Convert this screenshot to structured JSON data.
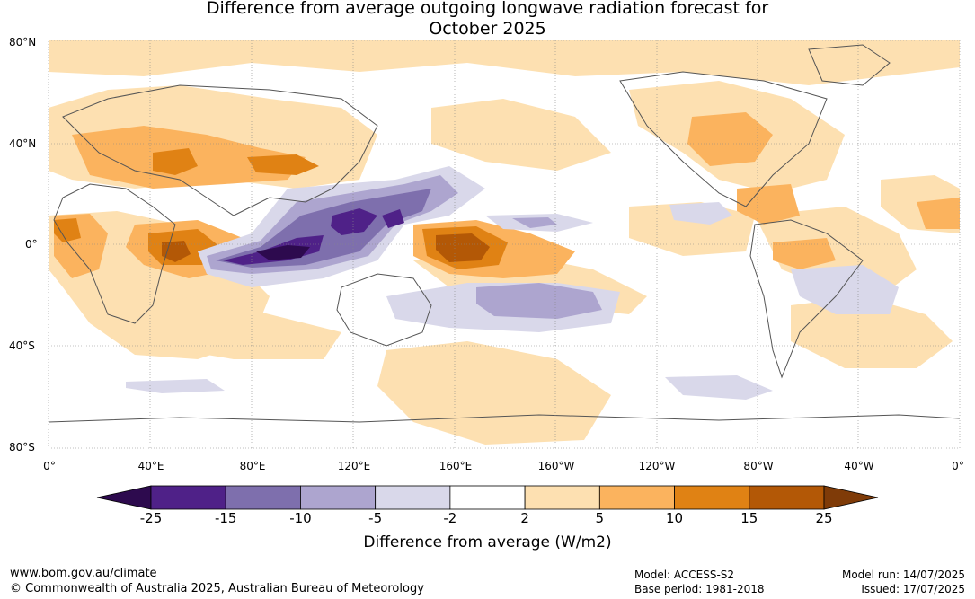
{
  "title_line1": "Difference from average outgoing longwave radiation forecast for",
  "title_line2": "October 2025",
  "lat_labels": [
    "80°N",
    "40°N",
    "0°",
    "40°S",
    "80°S"
  ],
  "lon_labels": [
    "0°",
    "40°E",
    "80°E",
    "120°E",
    "160°E",
    "160°W",
    "120°W",
    "80°W",
    "40°W",
    "0°"
  ],
  "colorbar": {
    "ticks": [
      "-25",
      "-15",
      "-10",
      "-5",
      "-2",
      "2",
      "5",
      "10",
      "15",
      "25"
    ],
    "colors": [
      "#2d0a4e",
      "#4f2188",
      "#7e6fad",
      "#ada5cf",
      "#d9d8ea",
      "#ffffff",
      "#fde0b1",
      "#fbb35e",
      "#e08214",
      "#b35806",
      "#7f3b08"
    ],
    "label": "Difference from average (W/m2)"
  },
  "footer": {
    "website": "www.bom.gov.au/climate",
    "copyright": "© Commonwealth of Australia 2025, Australian Bureau of Meteorology",
    "model": "Model: ACCESS-S2",
    "base_period": "Base period: 1981-2018",
    "model_run": "Model run: 14/07/2025",
    "issued": "Issued: 17/07/2025"
  }
}
